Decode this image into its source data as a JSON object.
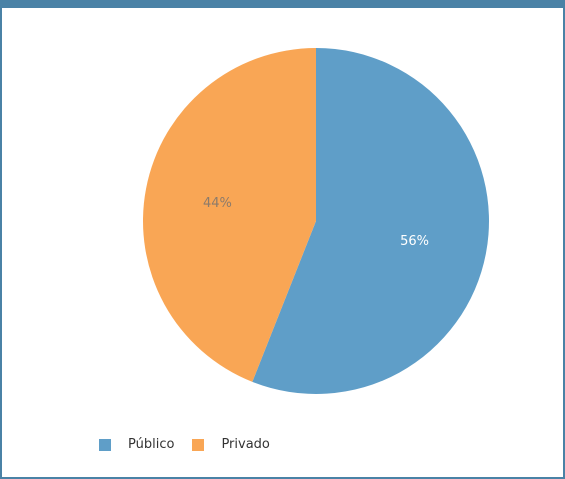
{
  "chart_data": {
    "type": "pie",
    "title": "",
    "slices": [
      {
        "label": "Público",
        "value": 56,
        "display": "56%",
        "color": "#5f9ec8",
        "label_color": "#ffffff"
      },
      {
        "label": "Privado",
        "value": 44,
        "display": "44%",
        "color": "#f9a655",
        "label_color": "#8c7b6b"
      }
    ],
    "legend_position": "bottom-left"
  },
  "legend": {
    "items": [
      {
        "label": "Público",
        "color": "#5f9ec8"
      },
      {
        "label": "Privado",
        "color": "#f9a655"
      }
    ]
  }
}
